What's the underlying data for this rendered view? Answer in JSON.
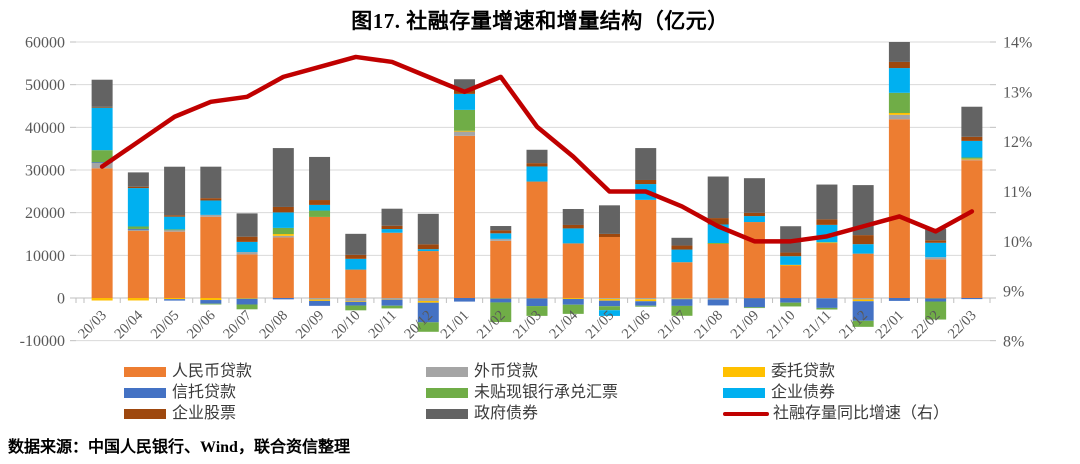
{
  "title": "图17.  社融存量增速和增量结构（亿元）",
  "source_note": "数据来源：中国人民银行、Wind，联合资信整理",
  "colors": {
    "grid": "#D9D9D9",
    "axis": "#BFBFBF",
    "axis_text": "#595959",
    "title_text": "#000000",
    "legend_text": "#3A3A3A",
    "trend_line": "#C00000"
  },
  "chart_data": {
    "type": "bar",
    "subtype": "stacked-bars-with-line-overlay",
    "title": "图17.  社融存量增速和增量结构（亿元）",
    "unit": "亿元",
    "grid": true,
    "legend_position": "bottom",
    "categories": [
      "20/03",
      "20/04",
      "20/05",
      "20/06",
      "20/07",
      "20/08",
      "20/09",
      "20/10",
      "20/11",
      "20/12",
      "21/01",
      "21/02",
      "21/03",
      "21/04",
      "21/05",
      "21/06",
      "21/07",
      "21/08",
      "21/09",
      "21/10",
      "21/11",
      "21/12",
      "22/01",
      "22/02",
      "22/03"
    ],
    "series": [
      {
        "name": "人民币贷款",
        "color": "#ED7D31",
        "values": [
          30400,
          15700,
          15550,
          19050,
          10220,
          14200,
          19000,
          6660,
          15300,
          11000,
          38000,
          13400,
          27290,
          12800,
          14300,
          23000,
          8390,
          12700,
          17800,
          7750,
          13000,
          10400,
          41900,
          9080,
          32290
        ]
      },
      {
        "name": "外币贷款",
        "color": "#A5A5A5",
        "values": [
          1420,
          460,
          460,
          430,
          550,
          370,
          -360,
          -720,
          -390,
          -700,
          1100,
          460,
          -60,
          -30,
          -220,
          -290,
          -130,
          -380,
          -20,
          -30,
          -130,
          -340,
          1030,
          480,
          240
        ]
      },
      {
        "name": "委托贷款",
        "color": "#FFC000",
        "values": [
          -590,
          -580,
          -270,
          -480,
          -150,
          420,
          -320,
          -170,
          -30,
          -400,
          90,
          -100,
          -40,
          -210,
          -410,
          -470,
          -150,
          170,
          -20,
          20,
          40,
          -420,
          430,
          -70,
          110
        ]
      },
      {
        "name": "信托贷款",
        "color": "#4472C4",
        "values": [
          10,
          20,
          -340,
          -850,
          -1370,
          -320,
          -1160,
          -880,
          -1390,
          -4600,
          -840,
          -940,
          -1790,
          -1330,
          -1300,
          -1050,
          -1570,
          -1360,
          -2130,
          -1060,
          -2190,
          -4580,
          -680,
          -750,
          -260
        ]
      },
      {
        "name": "未贴现银行承兑汇票",
        "color": "#70AD47",
        "values": [
          2820,
          580,
          80,
          -20,
          -1130,
          1440,
          1500,
          -1120,
          -630,
          -2220,
          4900,
          -4600,
          -2300,
          -2150,
          -930,
          -220,
          -2320,
          20,
          -20,
          -890,
          -380,
          -1420,
          4730,
          -4230,
          290
        ]
      },
      {
        "name": "企业债券",
        "color": "#00B0F0",
        "values": [
          9950,
          9000,
          2970,
          3380,
          2380,
          3630,
          1320,
          2520,
          860,
          440,
          3750,
          1300,
          3540,
          3510,
          -1340,
          3700,
          2960,
          4340,
          1400,
          2030,
          4100,
          2220,
          5800,
          3380,
          3890
        ]
      },
      {
        "name": "企业股票",
        "color": "#9E480E",
        "values": [
          200,
          320,
          350,
          540,
          1220,
          1280,
          1140,
          930,
          770,
          1130,
          990,
          690,
          780,
          810,
          720,
          960,
          940,
          1500,
          770,
          850,
          1290,
          2120,
          1440,
          590,
          960
        ]
      },
      {
        "name": "政府债券",
        "color": "#636363",
        "values": [
          6360,
          3360,
          11360,
          7380,
          5460,
          13800,
          10100,
          4930,
          4000,
          7160,
          2440,
          1020,
          3130,
          3740,
          6700,
          7480,
          1820,
          9740,
          8110,
          6170,
          8160,
          11720,
          6030,
          2720,
          7050
        ]
      }
    ],
    "line_series": {
      "name": "社融存量同比增速（右）",
      "color": "#C00000",
      "axis": "right",
      "unit": "%",
      "values": [
        11.5,
        12.0,
        12.5,
        12.8,
        12.9,
        13.3,
        13.5,
        13.7,
        13.6,
        13.3,
        13.0,
        13.3,
        12.3,
        11.7,
        11.0,
        11.0,
        10.7,
        10.3,
        10.0,
        10.0,
        10.1,
        10.3,
        10.5,
        10.2,
        10.6
      ]
    },
    "left_axis": {
      "min": -10000,
      "max": 60000,
      "step": 10000,
      "tick_values": [
        -10000,
        0,
        10000,
        20000,
        30000,
        40000,
        50000,
        60000
      ],
      "tick_labels": [
        "-10000",
        "0",
        "10000",
        "20000",
        "30000",
        "40000",
        "50000",
        "60000"
      ]
    },
    "right_axis": {
      "min": 8,
      "max": 14,
      "step": 1,
      "tick_values": [
        8,
        9,
        10,
        11,
        12,
        13,
        14
      ],
      "tick_labels": [
        "8%",
        "9%",
        "10%",
        "11%",
        "12%",
        "13%",
        "14%"
      ]
    },
    "legend_columns": [
      [
        "人民币贷款",
        "信托贷款",
        "企业股票"
      ],
      [
        "外币贷款",
        "未贴现银行承兑汇票",
        "政府债券"
      ],
      [
        "委托贷款",
        "企业债券",
        "社融存量同比增速（右）"
      ]
    ]
  }
}
